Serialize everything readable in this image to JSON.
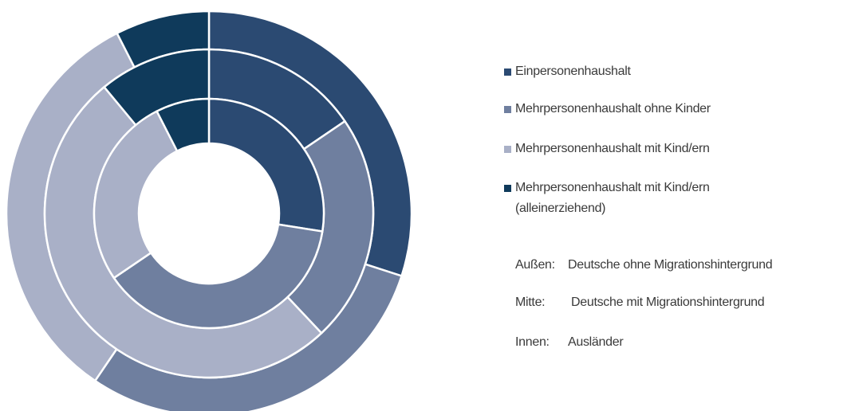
{
  "chart_data": {
    "type": "donut",
    "categories": [
      "Einpersonenhaushalt",
      "Mehrpersonenhaushalt ohne Kinder",
      "Mehrpersonenhaushalt mit Kind/ern",
      "Mehrpersonenhaushalt mit Kind/ern (alleinerziehend)"
    ],
    "colors": [
      "#2b4a72",
      "#6f7f9f",
      "#a9b0c7",
      "#0f3a5b"
    ],
    "rings": [
      {
        "label": "Außen:",
        "name": "Deutsche ohne Migrationshintergrund",
        "values": [
          30,
          29.5,
          33,
          7.5
        ]
      },
      {
        "label": "Mitte:",
        "name": "Deutsche mit Migrationshintergrund",
        "values": [
          15.5,
          22.5,
          51,
          11
        ]
      },
      {
        "label": "Innen:",
        "name": "Ausländer",
        "values": [
          27.5,
          38,
          27,
          7.5
        ]
      }
    ]
  }
}
